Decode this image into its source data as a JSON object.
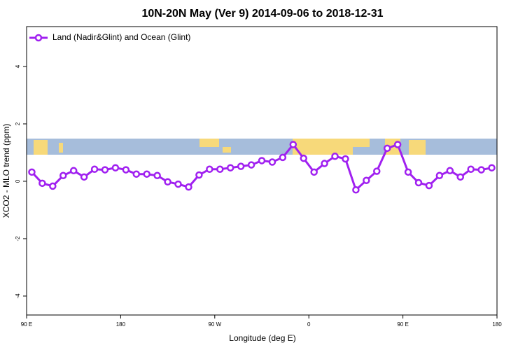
{
  "chart_data": {
    "type": "line",
    "title": "10N-20N May (Ver 9)   2014-09-06 to 2018-12-31",
    "x_label": "Longitude (deg E)",
    "y_label": "XCO2 - MLO trend (ppm)",
    "x": [
      95,
      105,
      115,
      125,
      135,
      145,
      155,
      165,
      175,
      185,
      195,
      205,
      215,
      225,
      235,
      245,
      255,
      265,
      275,
      285,
      295,
      305,
      315,
      325,
      335,
      345,
      355,
      365,
      375,
      385,
      395,
      405,
      415,
      425,
      435,
      445,
      455,
      465,
      475,
      485,
      495,
      505,
      515,
      525,
      535
    ],
    "series": [
      {
        "name": "Land (Nadir&Glint) and Ocean (Glint)",
        "color": "#a020f0",
        "values": [
          0.32,
          -0.07,
          -0.17,
          0.2,
          0.37,
          0.15,
          0.42,
          0.4,
          0.47,
          0.4,
          0.25,
          0.25,
          0.2,
          -0.02,
          -0.1,
          -0.2,
          0.22,
          0.42,
          0.42,
          0.47,
          0.52,
          0.57,
          0.72,
          0.67,
          0.83,
          1.28,
          0.8,
          0.32,
          0.62,
          0.87,
          0.78,
          -0.3,
          0.03,
          0.35,
          1.15,
          1.28,
          0.32,
          -0.05,
          -0.15,
          0.2,
          0.37,
          0.15,
          0.42,
          0.4,
          0.47
        ]
      }
    ],
    "xlim": [
      90,
      540
    ],
    "xticks": [
      {
        "value": 90,
        "label": "90 E"
      },
      180,
      {
        "value": 270,
        "label": "90 W"
      },
      {
        "value": 360,
        "label": "0"
      },
      {
        "value": 450,
        "label": "90 E"
      },
      {
        "value": 540,
        "label": "180"
      }
    ],
    "ylim": [
      -4.66,
      5.39
    ],
    "yticks": [
      -4,
      -2,
      0,
      2,
      4
    ],
    "legend": "top-left"
  }
}
